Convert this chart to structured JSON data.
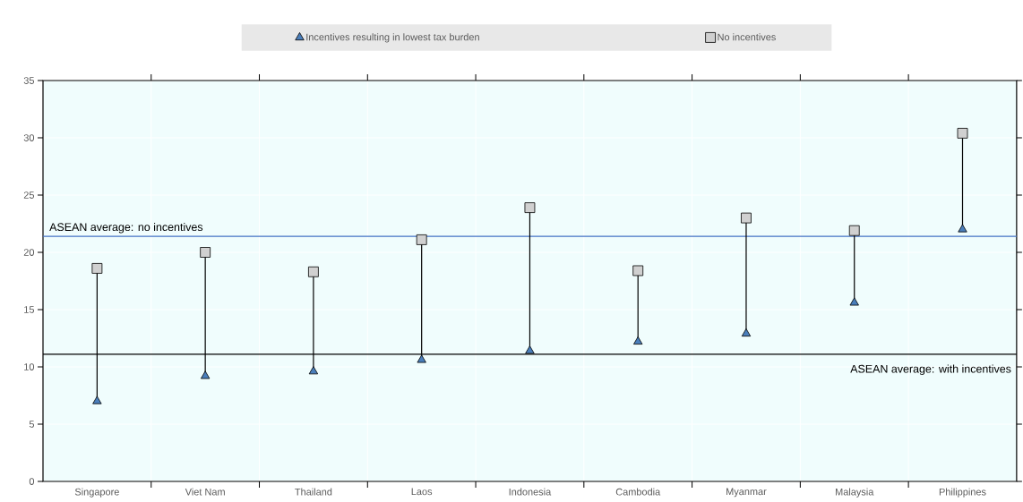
{
  "chart_data": {
    "type": "scatter",
    "categories": [
      "Singapore",
      "Viet Nam",
      "Thailand",
      "Laos",
      "Indonesia",
      "Cambodia",
      "Myanmar",
      "Malaysia",
      "Philippines"
    ],
    "series": [
      {
        "name": "Incentives resulting in lowest tax burden",
        "color": "#4a7ebb",
        "marker": "triangle",
        "values": [
          7.0,
          9.2,
          9.6,
          10.6,
          11.4,
          12.2,
          12.9,
          15.6,
          22.0
        ]
      },
      {
        "name": "No incentives",
        "color": "#d0d0d0",
        "marker": "square",
        "values": [
          18.6,
          20.0,
          18.3,
          21.1,
          23.9,
          18.4,
          23.0,
          21.9,
          30.4
        ]
      }
    ],
    "ylim": [
      0,
      35
    ],
    "yticks": [
      0,
      5,
      10,
      15,
      20,
      25,
      30,
      35
    ],
    "grid": true,
    "legend": "top",
    "ref_lines": [
      {
        "axis": "y",
        "value": 21.4,
        "label": "ASEAN average: no incentives",
        "color": "#4472c4"
      },
      {
        "axis": "y",
        "value": 11.1,
        "label": "ASEAN average: with incentives",
        "color": "#000000"
      }
    ]
  }
}
